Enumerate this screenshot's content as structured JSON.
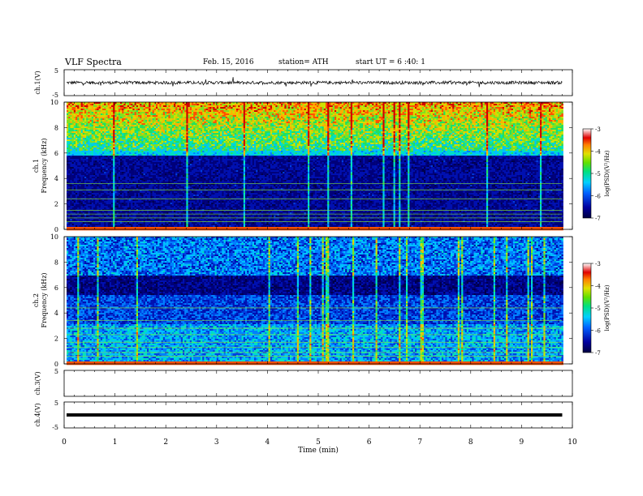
{
  "header": {
    "title": "VLF  Spectra",
    "date": "Feb. 15, 2016",
    "station": "station= ATH",
    "start": "start  UT  =   6  :40: 1"
  },
  "colors": {
    "spectrogram_low": "#000080",
    "spectrogram_mid": "#00c0ff",
    "spectrogram_green": "#40e060",
    "spectrogram_high": "#e0e000",
    "spectrogram_peak": "#e02000"
  },
  "chart_data": [
    {
      "type": "line",
      "panel": "ch1-waveform",
      "ylabel": "ch.1(V)",
      "ylim": [
        -5,
        5
      ],
      "ytick_labels": [
        "5",
        "-5"
      ],
      "x_unit": "min",
      "xlim": [
        0,
        10
      ],
      "data_range": [
        0,
        9.8
      ],
      "baseline": 0,
      "noise_amplitude": 0.6
    },
    {
      "type": "heatmap",
      "panel": "ch1-spectrogram",
      "ylabel": "ch.1\nFrequency  (kHz)",
      "ylim": [
        0,
        10
      ],
      "ytick_labels": [
        "0",
        "2",
        "4",
        "6",
        "8",
        "10"
      ],
      "colorbar": {
        "label": "log(PSD)(V²/Hz)",
        "range": [
          -7,
          -3
        ],
        "tick_labels": [
          "-3",
          "-4",
          "-5",
          "-6",
          "-7"
        ]
      },
      "x_unit": "min",
      "xlim": [
        0,
        10
      ],
      "data_range": [
        0,
        9.8
      ]
    },
    {
      "type": "heatmap",
      "panel": "ch2-spectrogram",
      "ylabel": "ch.2\nFrequency  (kHz)",
      "ylim": [
        0,
        10
      ],
      "ytick_labels": [
        "0",
        "2",
        "4",
        "6",
        "8",
        "10"
      ],
      "colorbar": {
        "label": "log(PSD)(V²/Hz)",
        "range": [
          -7,
          -3
        ],
        "tick_labels": [
          "-3",
          "-4",
          "-5",
          "-6",
          "-7"
        ]
      },
      "x_unit": "min",
      "xlim": [
        0,
        10
      ],
      "data_range": [
        0,
        9.8
      ]
    },
    {
      "type": "line",
      "panel": "ch3-waveform",
      "ylabel": "ch.3(V)",
      "ylim": [
        -5,
        5
      ],
      "ytick_labels": [
        "5"
      ],
      "xlim": [
        0,
        10
      ]
    },
    {
      "type": "line",
      "panel": "ch4-waveform",
      "ylabel": "ch.4(V)",
      "ylim": [
        -5,
        5
      ],
      "ytick_labels": [
        "5",
        "-5"
      ],
      "xlim": [
        0,
        10
      ],
      "data_range": [
        0,
        9.8
      ],
      "baseline": 0
    }
  ],
  "xaxis": {
    "label": "Time  (min)",
    "tick_labels": [
      "0",
      "1",
      "2",
      "3",
      "4",
      "5",
      "6",
      "7",
      "8",
      "9",
      "10"
    ]
  }
}
